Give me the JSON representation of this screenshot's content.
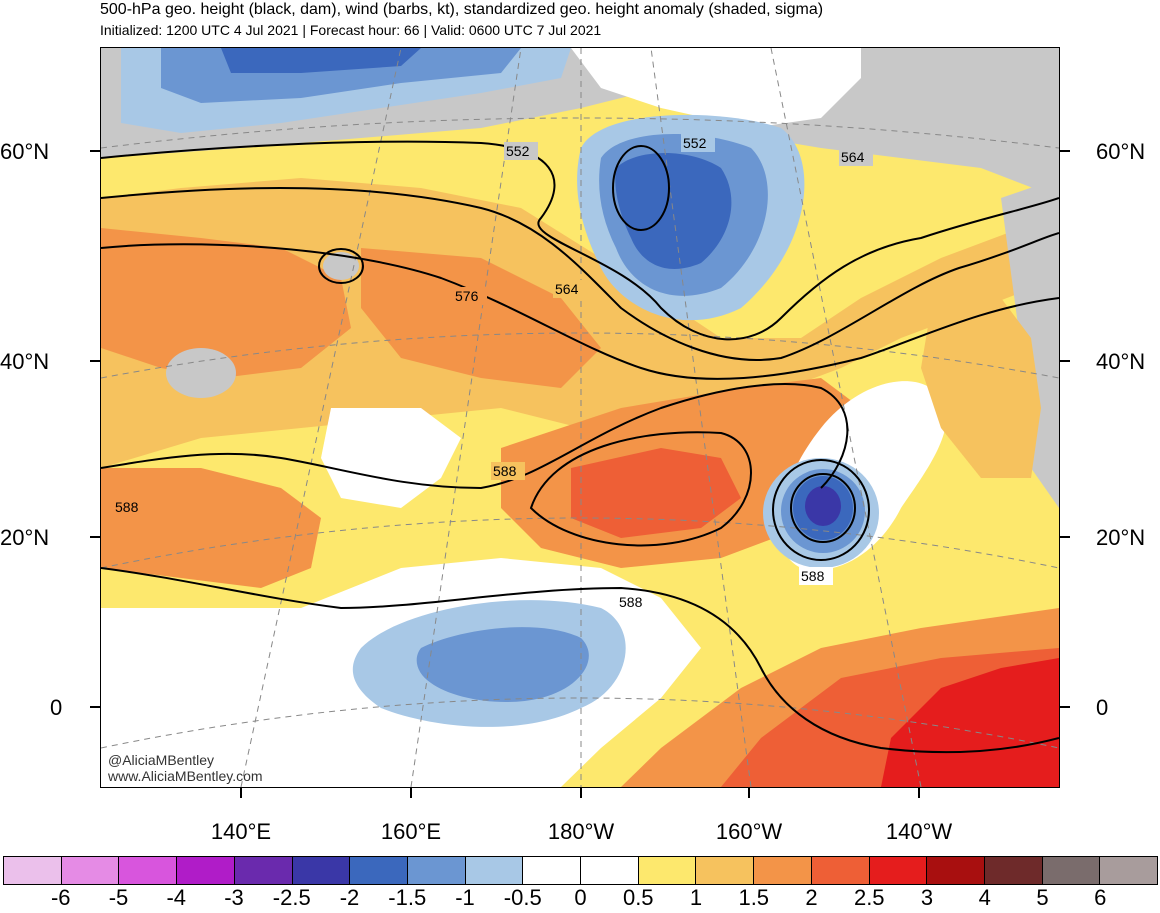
{
  "title": "500-hPa geo. height (black, dam), wind (barbs, kt), standardized geo. height anomaly (shaded, sigma)",
  "subtitle": "Initialized: 1200 UTC 4 Jul 2021 | Forecast hour: 66 | Valid: 0600 UTC 7 Jul 2021",
  "lat_labels": [
    "60°N",
    "40°N",
    "20°N",
    "0"
  ],
  "lon_labels": [
    "140°E",
    "160°E",
    "180°W",
    "160°W",
    "140°W"
  ],
  "contour_labels": [
    "552",
    "552",
    "564",
    "564",
    "576",
    "588",
    "588",
    "588",
    "588"
  ],
  "watermark": {
    "handle": "@AliciaMBentley",
    "site": "www.AliciaMBentley.com"
  },
  "colorbar": {
    "colors": [
      "#ebc0eb",
      "#e58be5",
      "#d855dd",
      "#b01cc8",
      "#6a2aad",
      "#3a37a7",
      "#3b68bd",
      "#6b96d2",
      "#a8c8e6",
      "#ffffff",
      "#ffffff",
      "#fde86d",
      "#f6c25e",
      "#f39448",
      "#ee5f36",
      "#e51d1d",
      "#a80f0f",
      "#6e2a2a",
      "#7a6c6c",
      "#a89c9c"
    ],
    "labels": [
      "-6",
      "-5",
      "-4",
      "-3",
      "-2.5",
      "-2",
      "-1.5",
      "-1",
      "-0.5",
      "0",
      "0.5",
      "1",
      "1.5",
      "2",
      "2.5",
      "3",
      "4",
      "5",
      "6"
    ]
  },
  "colors": {
    "neg_light": "#a8c8e6",
    "neg_mid": "#6b96d2",
    "neg_strong": "#3b68bd",
    "neg_deep": "#3a37a7",
    "pos_05": "#fde86d",
    "pos_1": "#f6c25e",
    "pos_15": "#f39448",
    "pos_2": "#ee5f36",
    "pos_25": "#e51d1d",
    "land_gray": "#c8c8c8"
  }
}
